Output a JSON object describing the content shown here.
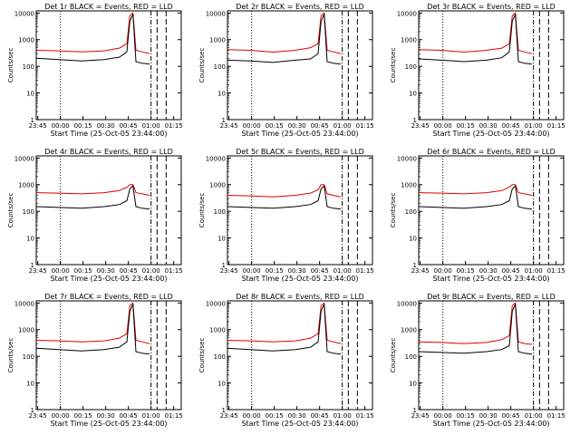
{
  "figure": {
    "panels": [
      {
        "title": "Det 1r BLACK = Events, RED = LLD"
      },
      {
        "title": "Det 2r BLACK = Events, RED = LLD"
      },
      {
        "title": "Det 3r BLACK = Events, RED = LLD"
      },
      {
        "title": "Det 4r BLACK = Events, RED = LLD"
      },
      {
        "title": "Det 5r BLACK = Events, RED = LLD"
      },
      {
        "title": "Det 6r BLACK = Events, RED = LLD"
      },
      {
        "title": "Det 7r BLACK = Events, RED = LLD"
      },
      {
        "title": "Det 8r BLACK = Events, RED = LLD"
      },
      {
        "title": "Det 9r BLACK = Events, RED = LLD"
      }
    ]
  },
  "chart_data": {
    "type": "line",
    "layout": "3x3 grid of identical-axis panels",
    "xlabel": "Start Time (25-Oct-05 23:44:00)",
    "ylabel": "Counts/sec",
    "x_ticks": [
      "23:45",
      "00:00",
      "00:15",
      "00:30",
      "00:45",
      "01:00",
      "01:15"
    ],
    "x_range_minutes_after_start": [
      0,
      96
    ],
    "y_scale": "log",
    "y_ticks": [
      "1",
      "10",
      "100",
      "1000",
      "10000"
    ],
    "ylim": [
      1,
      12000
    ],
    "grid": false,
    "vertical_markers": [
      {
        "style": "dotted",
        "at": "00:00"
      },
      {
        "style": "dash-dot",
        "at": "01:00"
      },
      {
        "style": "dashed",
        "at": "01:04"
      },
      {
        "style": "dashed",
        "at": "01:10"
      }
    ],
    "series_colors": {
      "events": "#000000",
      "lld": "#e00000"
    },
    "series": [
      {
        "panel": "1r",
        "events": [
          [
            0,
            200
          ],
          [
            15,
            180
          ],
          [
            30,
            160
          ],
          [
            45,
            180
          ],
          [
            55,
            220
          ],
          [
            60,
            350
          ],
          [
            62,
            5000
          ],
          [
            64,
            9000
          ],
          [
            66,
            150
          ],
          [
            70,
            130
          ],
          [
            75,
            120
          ]
        ],
        "lld": [
          [
            0,
            400
          ],
          [
            15,
            380
          ],
          [
            30,
            350
          ],
          [
            45,
            380
          ],
          [
            55,
            480
          ],
          [
            60,
            700
          ],
          [
            62,
            8000
          ],
          [
            64,
            10000
          ],
          [
            66,
            400
          ],
          [
            70,
            350
          ],
          [
            75,
            300
          ]
        ]
      },
      {
        "panel": "2r",
        "events": [
          [
            0,
            170
          ],
          [
            15,
            160
          ],
          [
            30,
            140
          ],
          [
            45,
            170
          ],
          [
            55,
            190
          ],
          [
            60,
            300
          ],
          [
            62,
            5000
          ],
          [
            64,
            9000
          ],
          [
            66,
            150
          ],
          [
            70,
            130
          ],
          [
            75,
            120
          ]
        ],
        "lld": [
          [
            0,
            420
          ],
          [
            15,
            400
          ],
          [
            30,
            340
          ],
          [
            45,
            400
          ],
          [
            55,
            500
          ],
          [
            60,
            700
          ],
          [
            62,
            8000
          ],
          [
            64,
            10000
          ],
          [
            66,
            400
          ],
          [
            70,
            350
          ],
          [
            75,
            300
          ]
        ]
      },
      {
        "panel": "3r",
        "events": [
          [
            0,
            190
          ],
          [
            15,
            170
          ],
          [
            30,
            150
          ],
          [
            45,
            170
          ],
          [
            55,
            210
          ],
          [
            60,
            350
          ],
          [
            62,
            5000
          ],
          [
            64,
            9000
          ],
          [
            66,
            150
          ],
          [
            70,
            130
          ],
          [
            75,
            120
          ]
        ],
        "lld": [
          [
            0,
            420
          ],
          [
            15,
            400
          ],
          [
            30,
            340
          ],
          [
            45,
            400
          ],
          [
            55,
            480
          ],
          [
            60,
            700
          ],
          [
            62,
            8000
          ],
          [
            64,
            10000
          ],
          [
            66,
            400
          ],
          [
            70,
            350
          ],
          [
            75,
            300
          ]
        ]
      },
      {
        "panel": "4r",
        "events": [
          [
            0,
            150
          ],
          [
            15,
            140
          ],
          [
            30,
            130
          ],
          [
            45,
            150
          ],
          [
            55,
            180
          ],
          [
            60,
            250
          ],
          [
            62,
            700
          ],
          [
            64,
            900
          ],
          [
            66,
            150
          ],
          [
            70,
            130
          ],
          [
            75,
            120
          ]
        ],
        "lld": [
          [
            0,
            500
          ],
          [
            15,
            480
          ],
          [
            30,
            450
          ],
          [
            45,
            500
          ],
          [
            55,
            600
          ],
          [
            60,
            800
          ],
          [
            62,
            1000
          ],
          [
            64,
            1000
          ],
          [
            66,
            500
          ],
          [
            70,
            450
          ],
          [
            75,
            400
          ]
        ]
      },
      {
        "panel": "5r",
        "events": [
          [
            0,
            150
          ],
          [
            15,
            140
          ],
          [
            30,
            130
          ],
          [
            45,
            150
          ],
          [
            55,
            180
          ],
          [
            60,
            250
          ],
          [
            62,
            700
          ],
          [
            64,
            900
          ],
          [
            66,
            150
          ],
          [
            70,
            130
          ],
          [
            75,
            120
          ]
        ],
        "lld": [
          [
            0,
            400
          ],
          [
            15,
            380
          ],
          [
            30,
            350
          ],
          [
            45,
            400
          ],
          [
            55,
            480
          ],
          [
            60,
            650
          ],
          [
            62,
            1000
          ],
          [
            64,
            1000
          ],
          [
            66,
            450
          ],
          [
            70,
            400
          ],
          [
            75,
            350
          ]
        ]
      },
      {
        "panel": "6r",
        "events": [
          [
            0,
            150
          ],
          [
            15,
            140
          ],
          [
            30,
            130
          ],
          [
            45,
            150
          ],
          [
            55,
            180
          ],
          [
            60,
            250
          ],
          [
            62,
            700
          ],
          [
            64,
            900
          ],
          [
            66,
            150
          ],
          [
            70,
            130
          ],
          [
            75,
            120
          ]
        ],
        "lld": [
          [
            0,
            500
          ],
          [
            15,
            480
          ],
          [
            30,
            450
          ],
          [
            45,
            500
          ],
          [
            55,
            600
          ],
          [
            60,
            800
          ],
          [
            62,
            1000
          ],
          [
            64,
            1000
          ],
          [
            66,
            500
          ],
          [
            70,
            450
          ],
          [
            75,
            400
          ]
        ]
      },
      {
        "panel": "7r",
        "events": [
          [
            0,
            200
          ],
          [
            15,
            180
          ],
          [
            30,
            160
          ],
          [
            45,
            180
          ],
          [
            55,
            220
          ],
          [
            60,
            350
          ],
          [
            62,
            5000
          ],
          [
            64,
            9000
          ],
          [
            66,
            150
          ],
          [
            70,
            130
          ],
          [
            75,
            120
          ]
        ],
        "lld": [
          [
            0,
            400
          ],
          [
            15,
            380
          ],
          [
            30,
            350
          ],
          [
            45,
            380
          ],
          [
            55,
            480
          ],
          [
            60,
            700
          ],
          [
            62,
            8000
          ],
          [
            64,
            10000
          ],
          [
            66,
            400
          ],
          [
            70,
            350
          ],
          [
            75,
            300
          ]
        ]
      },
      {
        "panel": "8r",
        "events": [
          [
            0,
            200
          ],
          [
            15,
            180
          ],
          [
            30,
            160
          ],
          [
            45,
            180
          ],
          [
            55,
            220
          ],
          [
            60,
            350
          ],
          [
            62,
            5000
          ],
          [
            64,
            9000
          ],
          [
            66,
            150
          ],
          [
            70,
            130
          ],
          [
            75,
            120
          ]
        ],
        "lld": [
          [
            0,
            400
          ],
          [
            15,
            380
          ],
          [
            30,
            350
          ],
          [
            45,
            380
          ],
          [
            55,
            480
          ],
          [
            60,
            700
          ],
          [
            62,
            8000
          ],
          [
            64,
            10000
          ],
          [
            66,
            400
          ],
          [
            70,
            350
          ],
          [
            75,
            300
          ]
        ]
      },
      {
        "panel": "9r",
        "events": [
          [
            0,
            150
          ],
          [
            15,
            140
          ],
          [
            30,
            130
          ],
          [
            45,
            150
          ],
          [
            55,
            180
          ],
          [
            60,
            250
          ],
          [
            62,
            5000
          ],
          [
            64,
            9000
          ],
          [
            66,
            150
          ],
          [
            70,
            130
          ],
          [
            75,
            120
          ]
        ],
        "lld": [
          [
            0,
            350
          ],
          [
            15,
            330
          ],
          [
            30,
            300
          ],
          [
            45,
            330
          ],
          [
            55,
            420
          ],
          [
            60,
            600
          ],
          [
            62,
            8000
          ],
          [
            64,
            10000
          ],
          [
            66,
            350
          ],
          [
            70,
            300
          ],
          [
            75,
            280
          ]
        ]
      }
    ]
  }
}
